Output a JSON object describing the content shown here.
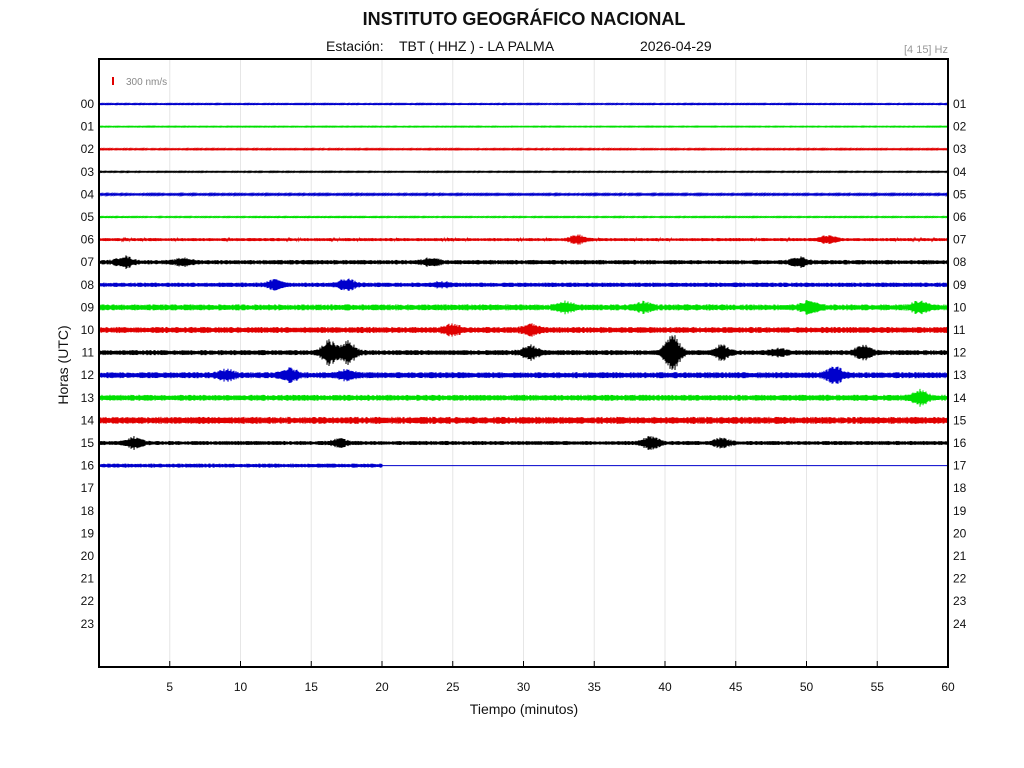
{
  "header": {
    "title": "INSTITUTO GEOGRÁFICO NACIONAL",
    "station_prefix": "Estación:",
    "station": "TBT ( HHZ ) - LA PALMA",
    "date": "2026-04-29",
    "filter": "[4 15] Hz"
  },
  "scale": {
    "label": "300 nm/s",
    "color": "#e00000"
  },
  "chart_data": {
    "type": "line",
    "title": "INSTITUTO GEOGRÁFICO NACIONAL",
    "xlabel": "Tiempo (minutos)",
    "ylabel": "Horas (UTC)",
    "xlim": [
      0,
      60
    ],
    "x_ticks": [
      "5",
      "10",
      "15",
      "20",
      "25",
      "30",
      "35",
      "40",
      "45",
      "50",
      "55",
      "60"
    ],
    "left_hour_labels": [
      "00",
      "01",
      "02",
      "03",
      "04",
      "05",
      "06",
      "07",
      "08",
      "09",
      "10",
      "11",
      "12",
      "13",
      "14",
      "15",
      "16",
      "17",
      "18",
      "19",
      "20",
      "21",
      "22",
      "23"
    ],
    "right_hour_labels": [
      "01",
      "02",
      "03",
      "04",
      "05",
      "06",
      "07",
      "08",
      "09",
      "10",
      "11",
      "12",
      "13",
      "14",
      "15",
      "16",
      "17",
      "18",
      "19",
      "20",
      "21",
      "22",
      "23",
      "24"
    ],
    "grid": true,
    "color_cycle": [
      "#0000cc",
      "#00e000",
      "#e00000",
      "#000000"
    ],
    "series": [
      {
        "hour": "00",
        "end_minute": 60,
        "noise": 0.5,
        "events": []
      },
      {
        "hour": "01",
        "end_minute": 60,
        "noise": 0.4,
        "events": []
      },
      {
        "hour": "02",
        "end_minute": 60,
        "noise": 0.6,
        "events": []
      },
      {
        "hour": "03",
        "end_minute": 60,
        "noise": 0.5,
        "events": []
      },
      {
        "hour": "04",
        "end_minute": 60,
        "noise": 0.8,
        "events": []
      },
      {
        "hour": "05",
        "end_minute": 60,
        "noise": 0.5,
        "events": []
      },
      {
        "hour": "06",
        "end_minute": 60,
        "noise": 1.5,
        "events": [
          {
            "minute": 33.8,
            "amp": 4
          },
          {
            "minute": 51.5,
            "amp": 3.5
          }
        ]
      },
      {
        "hour": "07",
        "end_minute": 60,
        "noise": 2.2,
        "events": [
          {
            "minute": 1.8,
            "amp": 5
          },
          {
            "minute": 6,
            "amp": 3
          },
          {
            "minute": 23.5,
            "amp": 3.5
          },
          {
            "minute": 49.5,
            "amp": 4
          }
        ]
      },
      {
        "hour": "08",
        "end_minute": 60,
        "noise": 2.2,
        "events": [
          {
            "minute": 12.5,
            "amp": 4
          },
          {
            "minute": 17.5,
            "amp": 5
          },
          {
            "minute": 24.2,
            "amp": 2
          }
        ]
      },
      {
        "hour": "09",
        "end_minute": 60,
        "noise": 3,
        "events": [
          {
            "minute": 33,
            "amp": 4
          },
          {
            "minute": 38.5,
            "amp": 4
          },
          {
            "minute": 50.2,
            "amp": 5
          },
          {
            "minute": 58,
            "amp": 5
          }
        ]
      },
      {
        "hour": "10",
        "end_minute": 60,
        "noise": 3,
        "events": [
          {
            "minute": 25,
            "amp": 4
          },
          {
            "minute": 30.5,
            "amp": 4
          }
        ]
      },
      {
        "hour": "11",
        "end_minute": 60,
        "noise": 2.5,
        "events": [
          {
            "minute": 16.3,
            "amp": 11
          },
          {
            "minute": 17.6,
            "amp": 10
          },
          {
            "minute": 30.5,
            "amp": 6
          },
          {
            "minute": 40.5,
            "amp": 17
          },
          {
            "minute": 44,
            "amp": 6
          },
          {
            "minute": 48,
            "amp": 3
          },
          {
            "minute": 54,
            "amp": 6
          }
        ]
      },
      {
        "hour": "12",
        "end_minute": 60,
        "noise": 3,
        "events": [
          {
            "minute": 9,
            "amp": 4
          },
          {
            "minute": 13.5,
            "amp": 5
          },
          {
            "minute": 17.5,
            "amp": 4
          },
          {
            "minute": 52,
            "amp": 7
          }
        ]
      },
      {
        "hour": "13",
        "end_minute": 60,
        "noise": 3,
        "events": [
          {
            "minute": 58,
            "amp": 6
          }
        ]
      },
      {
        "hour": "14",
        "end_minute": 60,
        "noise": 3.5,
        "events": []
      },
      {
        "hour": "15",
        "end_minute": 60,
        "noise": 2,
        "events": [
          {
            "minute": 2.5,
            "amp": 5
          },
          {
            "minute": 17,
            "amp": 3
          },
          {
            "minute": 39,
            "amp": 6
          },
          {
            "minute": 44,
            "amp": 4
          }
        ]
      },
      {
        "hour": "16",
        "end_minute": 20,
        "noise": 2,
        "events": []
      }
    ]
  }
}
